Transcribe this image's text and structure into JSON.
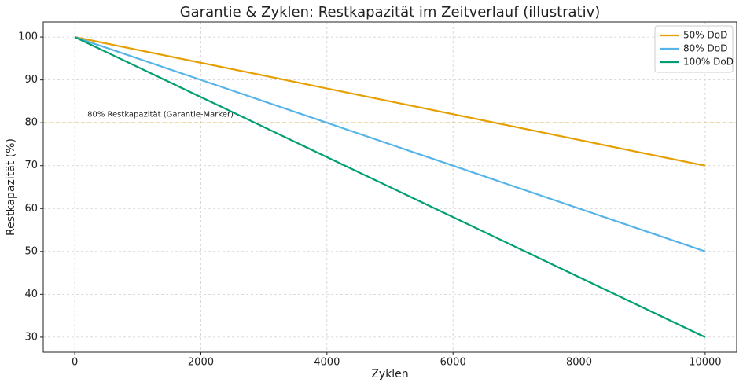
{
  "chart_data": {
    "type": "line",
    "title": "Garantie & Zyklen: Restkapazität im Zeitverlauf (illustrativ)",
    "x_label": "Zyklen",
    "y_label": "Restkapazität (%)",
    "x": [
      0,
      10000
    ],
    "series": [
      {
        "name": "50% DoD",
        "color": "#e69f00",
        "values": [
          100,
          70
        ]
      },
      {
        "name": "80% DoD",
        "color": "#56b4e9",
        "values": [
          100,
          50
        ]
      },
      {
        "name": "100% DoD",
        "color": "#009e73",
        "values": [
          100,
          30
        ]
      }
    ],
    "hline": {
      "y": 80,
      "color": "#d4a62a"
    },
    "annotations": [
      {
        "text": "80% Restkapazität (Garantie-Marker)",
        "x": 200,
        "y": 82
      }
    ],
    "xlim": [
      -500,
      10500
    ],
    "ylim": [
      26.5,
      103.5
    ],
    "xticks": [
      0,
      2000,
      4000,
      6000,
      8000,
      10000
    ],
    "yticks": [
      30,
      40,
      50,
      60,
      70,
      80,
      90,
      100
    ],
    "grid": true,
    "legend": "upper-right"
  }
}
